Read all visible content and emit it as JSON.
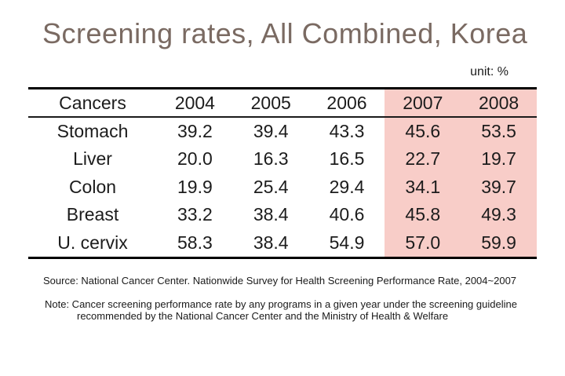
{
  "slide": {
    "title": "Screening rates, All Combined, Korea",
    "unit_label": "unit: %",
    "source": "Source: National Cancer Center. Nationwide Survey for Health Screening Performance Rate, 2004~2007",
    "note_line1": "Note: Cancer screening performance rate by any programs in a given year under the screening guideline",
    "note_line2": "recommended by the National Cancer Center and the Ministry of Health & Welfare"
  },
  "table": {
    "headers": [
      "Cancers",
      "2004",
      "2005",
      "2006",
      "2007",
      "2008"
    ],
    "rows": [
      [
        "Stomach",
        "39.2",
        "39.4",
        "43.3",
        "45.6",
        "53.5"
      ],
      [
        "Liver",
        "20.0",
        "16.3",
        "16.5",
        "22.7",
        "19.7"
      ],
      [
        "Colon",
        "19.9",
        "25.4",
        "29.4",
        "34.1",
        "39.7"
      ],
      [
        "Breast",
        "33.2",
        "38.4",
        "40.6",
        "45.8",
        "49.3"
      ],
      [
        "U. cervix",
        "58.3",
        "38.4",
        "54.9",
        "57.0",
        "59.9"
      ]
    ],
    "highlighted_columns": [
      "2007",
      "2008"
    ]
  },
  "colors": {
    "title_text": "#7a6a62",
    "highlight_pink": "#f8cdc8",
    "table_text": "#1c1c1c",
    "rule_lines": "#000000"
  }
}
